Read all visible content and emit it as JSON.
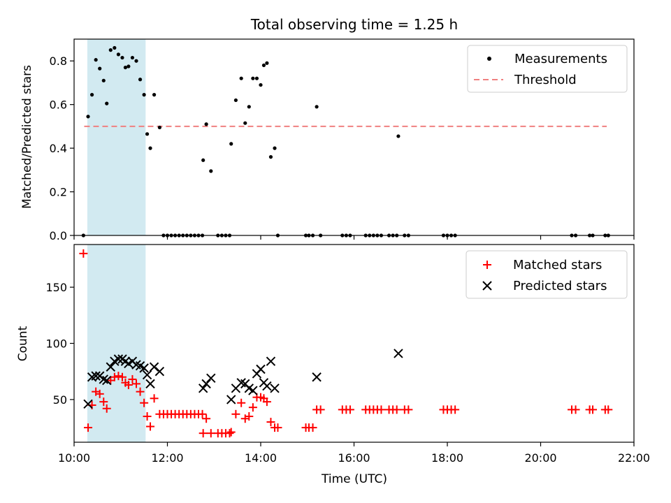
{
  "title": "Total observing time = 1.25 h",
  "xlabel": "Time (UTC)",
  "x_ticks": [
    "10:00",
    "12:00",
    "14:00",
    "16:00",
    "18:00",
    "20:00",
    "22:00"
  ],
  "colors": {
    "measurement": "#000000",
    "threshold": "#f08080",
    "matched": "#ff0000",
    "predicted": "#000000",
    "span": "#add8e6"
  },
  "chart_data": [
    {
      "type": "scatter",
      "ylabel": "Matched/Predicted stars",
      "xlim": [
        "10:00",
        "22:00"
      ],
      "ylim": [
        0,
        0.9
      ],
      "y_ticks": [
        "0.0",
        "0.2",
        "0.4",
        "0.6",
        "0.8"
      ],
      "highlight_span": [
        "10:17",
        "11:32"
      ],
      "legend": {
        "position": "top-right",
        "items": [
          "Measurements",
          "Threshold"
        ]
      },
      "threshold": {
        "name": "Threshold",
        "y": 0.5,
        "x_range": [
          "10:13",
          "21:25"
        ]
      },
      "series": [
        {
          "name": "Measurements",
          "points": [
            [
              "10:12",
              0.0
            ],
            [
              "10:18",
              0.545
            ],
            [
              "10:23",
              0.645
            ],
            [
              "10:28",
              0.805
            ],
            [
              "10:33",
              0.765
            ],
            [
              "10:38",
              0.71
            ],
            [
              "10:42",
              0.605
            ],
            [
              "10:47",
              0.85
            ],
            [
              "10:52",
              0.86
            ],
            [
              "10:57",
              0.83
            ],
            [
              "11:02",
              0.815
            ],
            [
              "11:06",
              0.77
            ],
            [
              "11:10",
              0.775
            ],
            [
              "11:15",
              0.815
            ],
            [
              "11:20",
              0.8
            ],
            [
              "11:25",
              0.715
            ],
            [
              "11:30",
              0.645
            ],
            [
              "11:34",
              0.465
            ],
            [
              "11:38",
              0.4
            ],
            [
              "11:43",
              0.645
            ],
            [
              "11:50",
              0.495
            ],
            [
              "11:55",
              0.0
            ],
            [
              "12:00",
              0.0
            ],
            [
              "12:05",
              0.0
            ],
            [
              "12:10",
              0.0
            ],
            [
              "12:15",
              0.0
            ],
            [
              "12:20",
              0.0
            ],
            [
              "12:25",
              0.0
            ],
            [
              "12:30",
              0.0
            ],
            [
              "12:35",
              0.0
            ],
            [
              "12:40",
              0.0
            ],
            [
              "12:45",
              0.0
            ],
            [
              "12:46",
              0.345
            ],
            [
              "12:50",
              0.51
            ],
            [
              "12:56",
              0.295
            ],
            [
              "13:05",
              0.0
            ],
            [
              "13:10",
              0.0
            ],
            [
              "13:15",
              0.0
            ],
            [
              "13:20",
              0.0
            ],
            [
              "13:22",
              0.42
            ],
            [
              "13:28",
              0.62
            ],
            [
              "13:35",
              0.72
            ],
            [
              "13:40",
              0.515
            ],
            [
              "13:45",
              0.59
            ],
            [
              "13:50",
              0.72
            ],
            [
              "13:55",
              0.72
            ],
            [
              "14:00",
              0.69
            ],
            [
              "14:04",
              0.78
            ],
            [
              "14:08",
              0.79
            ],
            [
              "14:13",
              0.36
            ],
            [
              "14:18",
              0.4
            ],
            [
              "14:22",
              0.0
            ],
            [
              "14:58",
              0.0
            ],
            [
              "15:02",
              0.0
            ],
            [
              "15:07",
              0.0
            ],
            [
              "15:12",
              0.59
            ],
            [
              "15:17",
              0.0
            ],
            [
              "15:45",
              0.0
            ],
            [
              "15:50",
              0.0
            ],
            [
              "15:55",
              0.0
            ],
            [
              "16:15",
              0.0
            ],
            [
              "16:20",
              0.0
            ],
            [
              "16:25",
              0.0
            ],
            [
              "16:30",
              0.0
            ],
            [
              "16:35",
              0.0
            ],
            [
              "16:45",
              0.0
            ],
            [
              "16:50",
              0.0
            ],
            [
              "16:55",
              0.0
            ],
            [
              "16:57",
              0.455
            ],
            [
              "17:05",
              0.0
            ],
            [
              "17:10",
              0.0
            ],
            [
              "17:55",
              0.0
            ],
            [
              "18:00",
              0.0
            ],
            [
              "18:05",
              0.0
            ],
            [
              "18:10",
              0.0
            ],
            [
              "20:40",
              0.0
            ],
            [
              "20:45",
              0.0
            ],
            [
              "21:03",
              0.0
            ],
            [
              "21:07",
              0.0
            ],
            [
              "21:23",
              0.0
            ],
            [
              "21:27",
              0.0
            ]
          ]
        }
      ]
    },
    {
      "type": "scatter",
      "ylabel": "Count",
      "xlabel": "Time (UTC)",
      "xlim": [
        "10:00",
        "22:00"
      ],
      "ylim": [
        12,
        188
      ],
      "y_ticks": [
        "50",
        "100",
        "150"
      ],
      "highlight_span": [
        "10:17",
        "11:32"
      ],
      "legend": {
        "position": "top-right",
        "items": [
          "Matched stars",
          "Predicted stars"
        ]
      },
      "series": [
        {
          "name": "Matched stars",
          "marker": "plus",
          "points": [
            [
              "10:12",
              180
            ],
            [
              "10:18",
              25
            ],
            [
              "10:23",
              45
            ],
            [
              "10:28",
              57
            ],
            [
              "10:33",
              55
            ],
            [
              "10:38",
              48
            ],
            [
              "10:42",
              42
            ],
            [
              "10:47",
              67
            ],
            [
              "10:52",
              70
            ],
            [
              "10:57",
              71
            ],
            [
              "11:02",
              70
            ],
            [
              "11:06",
              65
            ],
            [
              "11:10",
              63
            ],
            [
              "11:15",
              68
            ],
            [
              "11:20",
              64
            ],
            [
              "11:25",
              57
            ],
            [
              "11:30",
              47
            ],
            [
              "11:34",
              35
            ],
            [
              "11:38",
              26
            ],
            [
              "11:43",
              51
            ],
            [
              "11:50",
              37
            ],
            [
              "11:55",
              37
            ],
            [
              "12:00",
              37
            ],
            [
              "12:05",
              37
            ],
            [
              "12:10",
              37
            ],
            [
              "12:15",
              37
            ],
            [
              "12:20",
              37
            ],
            [
              "12:25",
              37
            ],
            [
              "12:30",
              37
            ],
            [
              "12:35",
              37
            ],
            [
              "12:40",
              37
            ],
            [
              "12:45",
              37
            ],
            [
              "12:46",
              20
            ],
            [
              "12:50",
              33
            ],
            [
              "12:56",
              20
            ],
            [
              "13:05",
              20
            ],
            [
              "13:10",
              20
            ],
            [
              "13:15",
              20
            ],
            [
              "13:20",
              20
            ],
            [
              "13:22",
              21
            ],
            [
              "13:28",
              37
            ],
            [
              "13:35",
              47
            ],
            [
              "13:40",
              33
            ],
            [
              "13:45",
              35
            ],
            [
              "13:50",
              43
            ],
            [
              "13:55",
              52
            ],
            [
              "14:00",
              52
            ],
            [
              "14:04",
              51
            ],
            [
              "14:08",
              48
            ],
            [
              "14:13",
              30
            ],
            [
              "14:18",
              25
            ],
            [
              "14:22",
              25
            ],
            [
              "14:58",
              25
            ],
            [
              "15:02",
              25
            ],
            [
              "15:07",
              25
            ],
            [
              "15:12",
              41
            ],
            [
              "15:17",
              41
            ],
            [
              "15:45",
              41
            ],
            [
              "15:50",
              41
            ],
            [
              "15:55",
              41
            ],
            [
              "16:15",
              41
            ],
            [
              "16:20",
              41
            ],
            [
              "16:25",
              41
            ],
            [
              "16:30",
              41
            ],
            [
              "16:35",
              41
            ],
            [
              "16:45",
              41
            ],
            [
              "16:50",
              41
            ],
            [
              "16:55",
              41
            ],
            [
              "17:05",
              41
            ],
            [
              "17:10",
              41
            ],
            [
              "17:55",
              41
            ],
            [
              "18:00",
              41
            ],
            [
              "18:05",
              41
            ],
            [
              "18:10",
              41
            ],
            [
              "20:40",
              41
            ],
            [
              "20:45",
              41
            ],
            [
              "21:03",
              41
            ],
            [
              "21:07",
              41
            ],
            [
              "21:23",
              41
            ],
            [
              "21:27",
              41
            ]
          ]
        },
        {
          "name": "Predicted stars",
          "marker": "x",
          "points": [
            [
              "10:18",
              46
            ],
            [
              "10:23",
              70
            ],
            [
              "10:28",
              71
            ],
            [
              "10:33",
              71
            ],
            [
              "10:38",
              68
            ],
            [
              "10:42",
              67
            ],
            [
              "10:47",
              79
            ],
            [
              "10:52",
              84
            ],
            [
              "10:57",
              86
            ],
            [
              "11:02",
              86
            ],
            [
              "11:06",
              84
            ],
            [
              "11:10",
              82
            ],
            [
              "11:15",
              84
            ],
            [
              "11:20",
              81
            ],
            [
              "11:25",
              80
            ],
            [
              "11:30",
              78
            ],
            [
              "11:34",
              72
            ],
            [
              "11:38",
              64
            ],
            [
              "11:43",
              79
            ],
            [
              "11:50",
              75
            ],
            [
              "12:46",
              60
            ],
            [
              "12:50",
              64
            ],
            [
              "12:56",
              69
            ],
            [
              "13:22",
              50
            ],
            [
              "13:28",
              60
            ],
            [
              "13:35",
              65
            ],
            [
              "13:40",
              64
            ],
            [
              "13:45",
              60
            ],
            [
              "13:50",
              58
            ],
            [
              "13:55",
              73
            ],
            [
              "14:00",
              77
            ],
            [
              "14:04",
              65
            ],
            [
              "14:08",
              62
            ],
            [
              "14:13",
              84
            ],
            [
              "14:18",
              60
            ],
            [
              "15:12",
              70
            ],
            [
              "16:57",
              91
            ]
          ]
        }
      ]
    }
  ]
}
